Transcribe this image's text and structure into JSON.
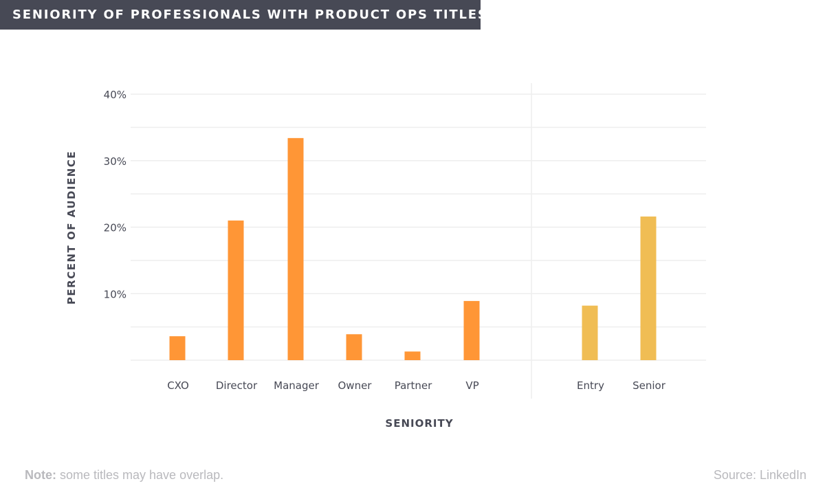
{
  "header": {
    "title": "SENIORITY OF PROFESSIONALS WITH PRODUCT OPS TITLES"
  },
  "chart_data": {
    "type": "bar",
    "title": "SENIORITY OF PROFESSIONALS WITH PRODUCT OPS TITLES",
    "xlabel": "SENIORITY",
    "ylabel": "PERCENT OF AUDIENCE",
    "ylim": [
      0,
      40
    ],
    "yticks": [
      10,
      20,
      30,
      40
    ],
    "ytick_labels": [
      "10%",
      "20%",
      "30%",
      "40%"
    ],
    "grid": true,
    "groups": [
      {
        "color": "#ff9636",
        "categories": [
          "CXO",
          "Director",
          "Manager",
          "Owner",
          "Partner",
          "VP"
        ],
        "values": [
          3.6,
          21.0,
          33.4,
          3.9,
          1.3,
          8.9
        ]
      },
      {
        "color": "#f0bd54",
        "categories": [
          "Entry",
          "Senior"
        ],
        "values": [
          8.2,
          21.6
        ]
      }
    ]
  },
  "footer": {
    "note_label": "Note:",
    "note_text": " some titles may have overlap.",
    "source": "Source: LinkedIn"
  },
  "colors": {
    "banner": "#474955",
    "axis_text": "#474955",
    "grid": "#eeeeee",
    "footer_text": "#b9b9bd"
  }
}
